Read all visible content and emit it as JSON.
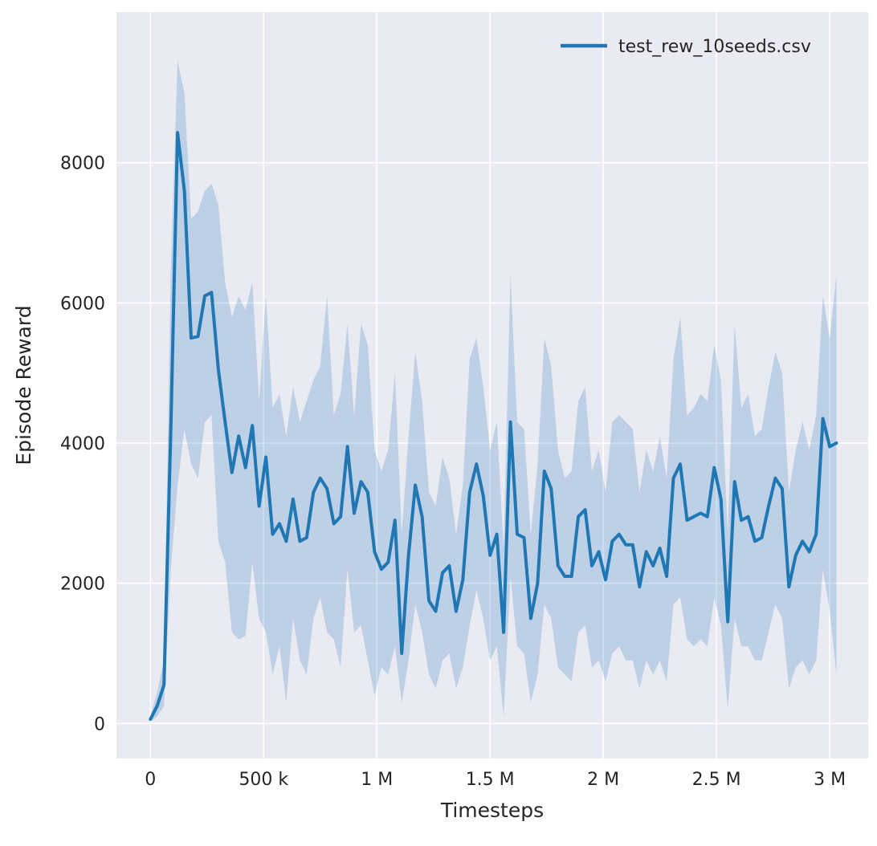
{
  "chart_data": {
    "type": "line",
    "title": "",
    "xlabel": "Timesteps",
    "ylabel": "Episode Reward",
    "legend": [
      {
        "label": "test_rew_10seeds.csv",
        "color": "#1f77b4"
      }
    ],
    "legend_position": "top-right",
    "grid": true,
    "background": "#eaeaf2",
    "grid_color": "#ffffff",
    "text_color": "#262626",
    "line_color": "#1f77b4",
    "band_color": "#1f77b4",
    "band_opacity": 0.22,
    "x_unit": "timesteps (thousands)",
    "xlim_k": [
      -150,
      3170
    ],
    "ylim": [
      -500,
      10150
    ],
    "xticks": [
      {
        "value_k": 0,
        "label": "0"
      },
      {
        "value_k": 500,
        "label": "500 k"
      },
      {
        "value_k": 1000,
        "label": "1 M"
      },
      {
        "value_k": 1500,
        "label": "1.5 M"
      },
      {
        "value_k": 2000,
        "label": "2 M"
      },
      {
        "value_k": 2500,
        "label": "2.5 M"
      },
      {
        "value_k": 3000,
        "label": "3 M"
      }
    ],
    "yticks": [
      {
        "value": 0,
        "label": "0"
      },
      {
        "value": 2000,
        "label": "2000"
      },
      {
        "value": 4000,
        "label": "4000"
      },
      {
        "value": 6000,
        "label": "6000"
      },
      {
        "value": 8000,
        "label": "8000"
      }
    ],
    "x_k": [
      0,
      30,
      60,
      90,
      120,
      150,
      180,
      210,
      240,
      270,
      300,
      330,
      360,
      390,
      420,
      450,
      480,
      510,
      540,
      570,
      600,
      630,
      660,
      690,
      720,
      750,
      780,
      810,
      840,
      870,
      900,
      930,
      960,
      990,
      1020,
      1050,
      1080,
      1110,
      1140,
      1170,
      1200,
      1230,
      1260,
      1290,
      1320,
      1350,
      1380,
      1410,
      1440,
      1470,
      1500,
      1530,
      1560,
      1590,
      1620,
      1650,
      1680,
      1710,
      1740,
      1770,
      1800,
      1830,
      1860,
      1890,
      1920,
      1950,
      1980,
      2010,
      2040,
      2070,
      2100,
      2130,
      2160,
      2190,
      2220,
      2250,
      2280,
      2310,
      2340,
      2370,
      2400,
      2430,
      2460,
      2490,
      2520,
      2550,
      2580,
      2610,
      2640,
      2670,
      2700,
      2730,
      2760,
      2790,
      2820,
      2850,
      2880,
      2910,
      2940,
      2970,
      3000,
      3030
    ],
    "series": [
      {
        "name": "test_rew_10seeds.csv",
        "mean": [
          60,
          250,
          550,
          4200,
          8430,
          7600,
          5500,
          5520,
          6100,
          6150,
          5050,
          4300,
          3580,
          4100,
          3650,
          4250,
          3100,
          3800,
          2700,
          2850,
          2600,
          3200,
          2600,
          2650,
          3300,
          3500,
          3350,
          2850,
          2950,
          3950,
          3000,
          3450,
          3300,
          2450,
          2200,
          2300,
          2900,
          1000,
          2400,
          3400,
          2950,
          1750,
          1600,
          2150,
          2250,
          1600,
          2050,
          3300,
          3700,
          3250,
          2400,
          2700,
          1300,
          4300,
          2700,
          2650,
          1500,
          2000,
          3600,
          3350,
          2250,
          2100,
          2100,
          2950,
          3050,
          2250,
          2450,
          2050,
          2600,
          2700,
          2550,
          2550,
          1950,
          2450,
          2250,
          2500,
          2100,
          3500,
          3700,
          2900,
          2950,
          3000,
          2950,
          3650,
          3200,
          1450,
          3450,
          2900,
          2950,
          2600,
          2650,
          3100,
          3500,
          3350,
          1950,
          2400,
          2600,
          2450,
          2700,
          4350,
          3950,
          4000
        ],
        "upper": [
          100,
          450,
          900,
          6500,
          9450,
          9000,
          7200,
          7300,
          7600,
          7700,
          7400,
          6300,
          5800,
          6100,
          5900,
          6300,
          4600,
          6100,
          4500,
          4700,
          4100,
          4800,
          4300,
          4600,
          4900,
          5100,
          6100,
          4400,
          4700,
          5700,
          4400,
          5700,
          5400,
          3900,
          3600,
          3900,
          5000,
          2700,
          4100,
          5300,
          4600,
          3300,
          3100,
          3800,
          3500,
          2700,
          3400,
          5200,
          5500,
          4800,
          3900,
          4300,
          2500,
          6400,
          4300,
          4200,
          2700,
          3700,
          5500,
          5100,
          3900,
          3500,
          3600,
          4600,
          4800,
          3600,
          3900,
          3300,
          4300,
          4400,
          4300,
          4200,
          3300,
          3900,
          3600,
          4100,
          3500,
          5200,
          5800,
          4400,
          4500,
          4700,
          4600,
          5400,
          4900,
          2700,
          5700,
          4500,
          4700,
          4100,
          4200,
          4800,
          5300,
          5000,
          3300,
          3900,
          4300,
          3900,
          4400,
          6100,
          5500,
          6400
        ],
        "lower": [
          30,
          100,
          250,
          2200,
          3400,
          4200,
          3700,
          3500,
          4300,
          4400,
          2600,
          2300,
          1300,
          1200,
          1250,
          2300,
          1500,
          1300,
          700,
          1100,
          300,
          1500,
          900,
          700,
          1500,
          1800,
          1300,
          1200,
          800,
          2200,
          1300,
          1400,
          900,
          400,
          800,
          700,
          1100,
          300,
          900,
          1700,
          1300,
          700,
          500,
          900,
          1000,
          500,
          800,
          1400,
          1900,
          1500,
          900,
          1100,
          100,
          2100,
          1100,
          1000,
          300,
          700,
          1700,
          1500,
          800,
          700,
          600,
          1300,
          1400,
          800,
          900,
          600,
          1000,
          1100,
          900,
          900,
          500,
          900,
          700,
          900,
          600,
          1700,
          1800,
          1200,
          1100,
          1200,
          1100,
          1800,
          1400,
          200,
          1500,
          1100,
          1100,
          900,
          900,
          1300,
          1700,
          1500,
          500,
          800,
          900,
          700,
          900,
          2200,
          1600,
          700
        ]
      }
    ]
  }
}
